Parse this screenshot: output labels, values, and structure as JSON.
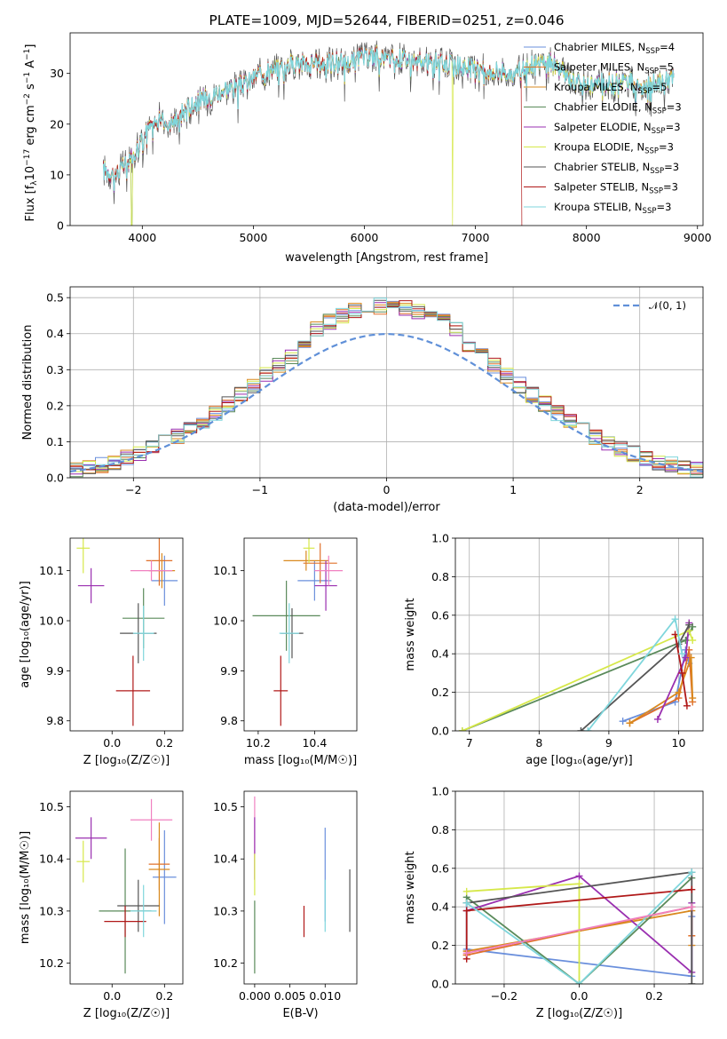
{
  "colors": {
    "Chabrier MILES": "#6a8fdc",
    "Salpeter MILES": "#e0702a",
    "Kroupa MILES": "#d9891f",
    "Chabrier ELODIE": "#5a8a5a",
    "Salpeter ELODIE": "#9a2fb0",
    "Kroupa ELODIE": "#d6e84a",
    "Chabrier STELIB": "#555555",
    "Salpeter STELIB": "#b01818",
    "Kroupa STELIB": "#7fd6dc",
    "pink": "#f080c0",
    "gaussian": "#6090d8"
  },
  "chart_data": [
    {
      "id": "spectrum",
      "type": "line",
      "title": "PLATE=1009, MJD=52644, FIBERID=0251, z=0.046",
      "xlabel": "wavelength [Angstrom, rest frame]",
      "ylabel_parts": [
        "Flux [f",
        "λ",
        "10",
        "−17",
        " erg cm",
        "−2",
        " s",
        "−1",
        " A",
        "−1",
        "]"
      ],
      "xlim": [
        3350,
        9050
      ],
      "ylim": [
        0,
        38
      ],
      "xticks": [
        4000,
        5000,
        6000,
        7000,
        8000,
        9000
      ],
      "yticks": [
        0,
        10,
        20,
        30
      ],
      "continuum": [
        [
          3650,
          11
        ],
        [
          3750,
          10
        ],
        [
          3850,
          12
        ],
        [
          3950,
          15
        ],
        [
          4050,
          19
        ],
        [
          4150,
          21
        ],
        [
          4250,
          20
        ],
        [
          4350,
          22
        ],
        [
          4450,
          24
        ],
        [
          4550,
          25
        ],
        [
          4650,
          26
        ],
        [
          4750,
          27
        ],
        [
          4850,
          27.5
        ],
        [
          4950,
          28
        ],
        [
          5050,
          30
        ],
        [
          5150,
          31
        ],
        [
          5250,
          31
        ],
        [
          5350,
          32
        ],
        [
          5450,
          32
        ],
        [
          5550,
          32
        ],
        [
          5650,
          32
        ],
        [
          5750,
          32.5
        ],
        [
          5850,
          32
        ],
        [
          5950,
          33
        ],
        [
          6050,
          33.5
        ],
        [
          6150,
          33.5
        ],
        [
          6250,
          33
        ],
        [
          6350,
          33
        ],
        [
          6450,
          32.5
        ],
        [
          6550,
          32
        ],
        [
          6650,
          32
        ],
        [
          6750,
          32
        ],
        [
          6850,
          31.5
        ],
        [
          6950,
          31
        ],
        [
          7050,
          31
        ],
        [
          7150,
          30.5
        ],
        [
          7250,
          30.5
        ],
        [
          7350,
          30
        ],
        [
          7450,
          31
        ],
        [
          7550,
          32
        ],
        [
          7650,
          32.5
        ],
        [
          7750,
          31
        ],
        [
          7850,
          29
        ],
        [
          7950,
          28
        ],
        [
          8050,
          28
        ],
        [
          8150,
          28
        ],
        [
          8250,
          28.5
        ],
        [
          8350,
          28.5
        ],
        [
          8450,
          28
        ],
        [
          8550,
          27.5
        ],
        [
          8650,
          28
        ],
        [
          8750,
          29
        ]
      ],
      "legend": [
        {
          "label": "Chabrier MILES, N",
          "sub": "SSP",
          "tail": "=4"
        },
        {
          "label": "Salpeter MILES, N",
          "sub": "SSP",
          "tail": "=5"
        },
        {
          "label": "Kroupa MILES, N",
          "sub": "SSP",
          "tail": "=5"
        },
        {
          "label": "Chabrier ELODIE, N",
          "sub": "SSP",
          "tail": "=3"
        },
        {
          "label": "Salpeter ELODIE, N",
          "sub": "SSP",
          "tail": "=3"
        },
        {
          "label": "Kroupa ELODIE, N",
          "sub": "SSP",
          "tail": "=3"
        },
        {
          "label": "Chabrier STELIB, N",
          "sub": "SSP",
          "tail": "=3"
        },
        {
          "label": "Salpeter STELIB, N",
          "sub": "SSP",
          "tail": "=3"
        },
        {
          "label": "Kroupa STELIB, N",
          "sub": "SSP",
          "tail": "=3"
        }
      ]
    },
    {
      "id": "residuals",
      "type": "histogram",
      "xlabel": "(data-model)/error",
      "ylabel": "Normed distribution",
      "xlim": [
        -2.5,
        2.5
      ],
      "ylim": [
        0,
        0.53
      ],
      "xticks": [
        -2,
        -1,
        0,
        1,
        2
      ],
      "yticks": [
        0.0,
        0.1,
        0.2,
        0.3,
        0.4,
        0.5
      ],
      "bin_width": 0.1,
      "grid": true,
      "legend": {
        "label": "𝒩(0, 1)"
      }
    },
    {
      "id": "age_vs_Z",
      "type": "scatter-errorbar",
      "xlabel": "Z [log₁₀(Z/Z☉)]",
      "ylabel": "age  [log₁₀(age/yr)]",
      "xlim": [
        -0.16,
        0.27
      ],
      "ylim": [
        9.78,
        10.165
      ],
      "xticks": [
        0.0,
        0.2
      ],
      "yticks": [
        9.8,
        9.9,
        10.0,
        10.1
      ],
      "points": [
        {
          "x": 0.2,
          "y": 10.08,
          "ex": 0.05,
          "ey": 0.05,
          "c": "Chabrier MILES"
        },
        {
          "x": 0.18,
          "y": 10.12,
          "ex": 0.05,
          "ey": 0.05,
          "c": "Salpeter MILES"
        },
        {
          "x": 0.19,
          "y": 10.1,
          "ex": 0.05,
          "ey": 0.035,
          "c": "Kroupa MILES"
        },
        {
          "x": 0.12,
          "y": 10.005,
          "ex": 0.08,
          "ey": 0.06,
          "c": "Chabrier ELODIE"
        },
        {
          "x": -0.08,
          "y": 10.07,
          "ex": 0.05,
          "ey": 0.035,
          "c": "Salpeter ELODIE"
        },
        {
          "x": -0.11,
          "y": 10.145,
          "ex": 0.025,
          "ey": 0.05,
          "c": "Kroupa ELODIE"
        },
        {
          "x": 0.1,
          "y": 9.975,
          "ex": 0.07,
          "ey": 0.06,
          "c": "Chabrier STELIB"
        },
        {
          "x": 0.08,
          "y": 9.86,
          "ex": 0.065,
          "ey": 0.07,
          "c": "Salpeter STELIB"
        },
        {
          "x": 0.12,
          "y": 9.975,
          "ex": 0.04,
          "ey": 0.055,
          "c": "Kroupa STELIB"
        },
        {
          "x": 0.15,
          "y": 10.1,
          "ex": 0.08,
          "ey": 0.02,
          "c": "pink"
        }
      ]
    },
    {
      "id": "age_vs_mass",
      "type": "scatter-errorbar",
      "xlabel": "mass [log₁₀(M/M☉)]",
      "ylabel": "",
      "xlim": [
        10.15,
        10.55
      ],
      "ylim": [
        9.78,
        10.165
      ],
      "xticks": [
        10.2,
        10.4
      ],
      "yticks": [
        9.8,
        9.9,
        10.0,
        10.1
      ],
      "points": [
        {
          "x": 10.4,
          "y": 10.08,
          "ex": 0.06,
          "ey": 0.04,
          "c": "Chabrier MILES"
        },
        {
          "x": 10.42,
          "y": 10.115,
          "ex": 0.06,
          "ey": 0.04,
          "c": "Salpeter MILES"
        },
        {
          "x": 10.37,
          "y": 10.12,
          "ex": 0.08,
          "ey": 0.02,
          "c": "Kroupa MILES"
        },
        {
          "x": 10.3,
          "y": 10.01,
          "ex": 0.12,
          "ey": 0.07,
          "c": "Chabrier ELODIE"
        },
        {
          "x": 10.44,
          "y": 10.07,
          "ex": 0.04,
          "ey": 0.05,
          "c": "Salpeter ELODIE"
        },
        {
          "x": 10.38,
          "y": 10.145,
          "ex": 0.02,
          "ey": 0.03,
          "c": "Kroupa ELODIE"
        },
        {
          "x": 10.32,
          "y": 9.975,
          "ex": 0.04,
          "ey": 0.05,
          "c": "Chabrier STELIB"
        },
        {
          "x": 10.28,
          "y": 9.86,
          "ex": 0.025,
          "ey": 0.07,
          "c": "Salpeter STELIB"
        },
        {
          "x": 10.31,
          "y": 9.975,
          "ex": 0.035,
          "ey": 0.06,
          "c": "Kroupa STELIB"
        },
        {
          "x": 10.45,
          "y": 10.1,
          "ex": 0.05,
          "ey": 0.03,
          "c": "pink"
        }
      ]
    },
    {
      "id": "mw_vs_age",
      "type": "line",
      "xlabel": "age  [log₁₀(age/yr)]",
      "ylabel": "mass weight",
      "xlim": [
        6.8,
        10.35
      ],
      "ylim": [
        0,
        1.0
      ],
      "xticks": [
        7,
        8,
        9,
        10
      ],
      "yticks": [
        0.0,
        0.2,
        0.4,
        0.6,
        0.8,
        1.0
      ],
      "grid": true,
      "series": [
        {
          "c": "Chabrier MILES",
          "x": [
            9.2,
            9.95,
            10.1,
            10.15
          ],
          "y": [
            0.05,
            0.15,
            0.42,
            0.35
          ]
        },
        {
          "c": "Salpeter MILES",
          "x": [
            9.3,
            10.0,
            10.15,
            10.2
          ],
          "y": [
            0.04,
            0.17,
            0.42,
            0.15
          ]
        },
        {
          "c": "Kroupa MILES",
          "x": [
            9.3,
            10.0,
            10.18,
            10.2
          ],
          "y": [
            0.04,
            0.2,
            0.38,
            0.17
          ]
        },
        {
          "c": "Chabrier ELODIE",
          "x": [
            6.9,
            10.1,
            10.2
          ],
          "y": [
            0.0,
            0.47,
            0.54
          ]
        },
        {
          "c": "Salpeter ELODIE",
          "x": [
            9.7,
            10.1,
            10.15
          ],
          "y": [
            0.06,
            0.38,
            0.56
          ]
        },
        {
          "c": "Kroupa ELODIE",
          "x": [
            6.9,
            10.15,
            10.2
          ],
          "y": [
            0.0,
            0.52,
            0.47
          ]
        },
        {
          "c": "Chabrier STELIB",
          "x": [
            8.6,
            10.0,
            10.15
          ],
          "y": [
            0.0,
            0.45,
            0.55
          ]
        },
        {
          "c": "Salpeter STELIB",
          "x": [
            9.95,
            10.05,
            10.12
          ],
          "y": [
            0.5,
            0.3,
            0.13
          ]
        },
        {
          "c": "Kroupa STELIB",
          "x": [
            8.7,
            9.95,
            10.05
          ],
          "y": [
            0.0,
            0.58,
            0.4
          ]
        }
      ]
    },
    {
      "id": "mass_vs_Z",
      "type": "scatter-errorbar",
      "xlabel": "Z [log₁₀(Z/Z☉)]",
      "ylabel": "mass [log₁₀(M/M☉)]",
      "xlim": [
        -0.16,
        0.27
      ],
      "ylim": [
        10.16,
        10.53
      ],
      "xticks": [
        0.0,
        0.2
      ],
      "yticks": [
        10.2,
        10.3,
        10.4,
        10.5
      ],
      "points": [
        {
          "x": 0.2,
          "y": 10.365,
          "ex": 0.045,
          "ey": 0.09,
          "c": "Chabrier MILES"
        },
        {
          "x": 0.18,
          "y": 10.39,
          "ex": 0.04,
          "ey": 0.05,
          "c": "Salpeter MILES"
        },
        {
          "x": 0.18,
          "y": 10.38,
          "ex": 0.04,
          "ey": 0.09,
          "c": "Kroupa MILES"
        },
        {
          "x": 0.05,
          "y": 10.3,
          "ex": 0.1,
          "ey": 0.12,
          "c": "Chabrier ELODIE"
        },
        {
          "x": -0.08,
          "y": 10.44,
          "ex": 0.06,
          "ey": 0.04,
          "c": "Salpeter ELODIE"
        },
        {
          "x": -0.11,
          "y": 10.395,
          "ex": 0.025,
          "ey": 0.04,
          "c": "Kroupa ELODIE"
        },
        {
          "x": 0.1,
          "y": 10.31,
          "ex": 0.08,
          "ey": 0.05,
          "c": "Chabrier STELIB"
        },
        {
          "x": 0.05,
          "y": 10.28,
          "ex": 0.08,
          "ey": 0.03,
          "c": "Salpeter STELIB"
        },
        {
          "x": 0.12,
          "y": 10.3,
          "ex": 0.05,
          "ey": 0.05,
          "c": "Kroupa STELIB"
        },
        {
          "x": 0.15,
          "y": 10.475,
          "ex": 0.08,
          "ey": 0.04,
          "c": "pink"
        }
      ]
    },
    {
      "id": "mass_vs_ebv",
      "type": "scatter-errorbar",
      "xlabel": "E(B-V)",
      "ylabel": "",
      "xlim": [
        -0.0015,
        0.0145
      ],
      "ylim": [
        10.16,
        10.53
      ],
      "xticks": [
        0.0,
        0.005,
        0.01
      ],
      "xtick_labels": [
        "0.000",
        "0.005",
        "0.010"
      ],
      "yticks": [
        10.2,
        10.3,
        10.4,
        10.5
      ],
      "points": [
        {
          "x": 0.01,
          "y": 10.37,
          "ex": 0,
          "ey": 0.09,
          "c": "Chabrier MILES"
        },
        {
          "x": 0.0,
          "y": 10.44,
          "ex": 0,
          "ey": 0.08,
          "c": "pink"
        },
        {
          "x": 0.0,
          "y": 10.42,
          "ex": 0,
          "ey": 0.06,
          "c": "Salpeter ELODIE"
        },
        {
          "x": 0.0,
          "y": 10.37,
          "ex": 0,
          "ey": 0.04,
          "c": "Kroupa ELODIE"
        },
        {
          "x": 0.0,
          "y": 10.25,
          "ex": 0,
          "ey": 0.07,
          "c": "Chabrier ELODIE"
        },
        {
          "x": 0.007,
          "y": 10.28,
          "ex": 0,
          "ey": 0.03,
          "c": "Salpeter STELIB"
        },
        {
          "x": 0.0135,
          "y": 10.32,
          "ex": 0,
          "ey": 0.06,
          "c": "Chabrier STELIB"
        },
        {
          "x": 0.01,
          "y": 10.31,
          "ex": 0,
          "ey": 0.05,
          "c": "Kroupa STELIB"
        }
      ]
    },
    {
      "id": "mw_vs_Z",
      "type": "line",
      "xlabel": "Z [log₁₀(Z/Z☉)]",
      "ylabel": "mass weight",
      "xlim": [
        -0.33,
        0.33
      ],
      "ylim": [
        0,
        1.0
      ],
      "xticks": [
        -0.2,
        0.0,
        0.2
      ],
      "xtick_labels": [
        "−0.2",
        "0.0",
        "0.2"
      ],
      "yticks": [
        0.0,
        0.2,
        0.4,
        0.6,
        0.8,
        1.0
      ],
      "grid": true,
      "series": [
        {
          "c": "Chabrier MILES",
          "x": [
            -0.3,
            -0.3,
            0.3,
            0.3
          ],
          "y": [
            0.42,
            0.18,
            0.04,
            0.35
          ]
        },
        {
          "c": "Salpeter MILES",
          "x": [
            -0.3,
            -0.3,
            0.3,
            0.3
          ],
          "y": [
            0.15,
            0.15,
            0.4,
            0.25
          ]
        },
        {
          "c": "Kroupa MILES",
          "x": [
            -0.3,
            -0.3,
            0.3,
            0.3
          ],
          "y": [
            0.17,
            0.17,
            0.38,
            0.2
          ]
        },
        {
          "c": "Chabrier ELODIE",
          "x": [
            -0.3,
            -0.3,
            0.0,
            0.3
          ],
          "y": [
            0.42,
            0.45,
            0.0,
            0.55
          ]
        },
        {
          "c": "Salpeter ELODIE",
          "x": [
            -0.3,
            0.0,
            0.3,
            0.3
          ],
          "y": [
            0.38,
            0.56,
            0.06,
            0.42
          ]
        },
        {
          "c": "Kroupa ELODIE",
          "x": [
            -0.3,
            0.0,
            0.0
          ],
          "y": [
            0.48,
            0.52,
            0.0
          ]
        },
        {
          "c": "Chabrier STELIB",
          "x": [
            -0.3,
            0.3,
            0.3
          ],
          "y": [
            0.42,
            0.58,
            0.0
          ]
        },
        {
          "c": "Salpeter STELIB",
          "x": [
            -0.3,
            -0.3,
            0.3
          ],
          "y": [
            0.13,
            0.38,
            0.49
          ]
        },
        {
          "c": "Kroupa STELIB",
          "x": [
            -0.3,
            0.0,
            0.3
          ],
          "y": [
            0.42,
            0.0,
            0.58
          ]
        },
        {
          "c": "pink",
          "x": [
            -0.3,
            0.3
          ],
          "y": [
            0.16,
            0.4
          ]
        }
      ]
    }
  ]
}
